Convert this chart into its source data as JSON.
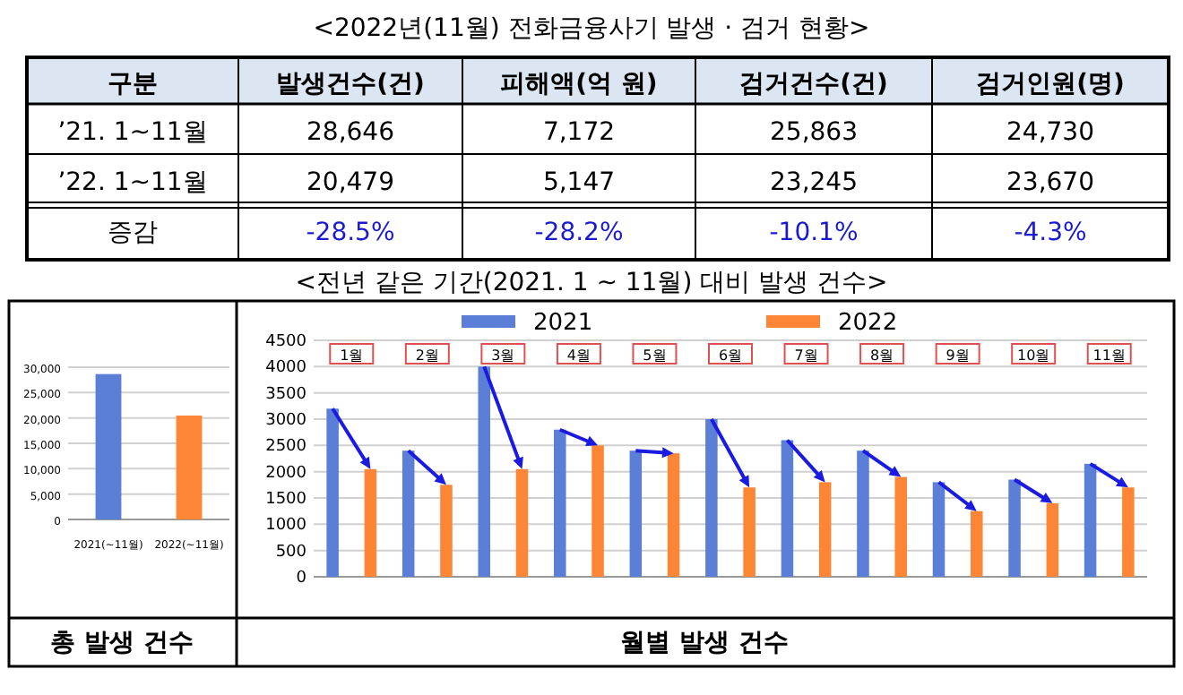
{
  "chart_data": [
    {
      "type": "other",
      "title": "<2022년(11월) 전화금융사기 발생 · 검거 현황>",
      "categories": [
        "구분",
        "발생건수(건)",
        "피해액(억 원)",
        "검거건수(건)",
        "검거인원(명)"
      ],
      "cell_labels": [
        [
          "’21. 1~11월",
          "28,646",
          "7,172",
          "25,863",
          "24,730"
        ],
        [
          "’22. 1~11월",
          "20,479",
          "5,147",
          "23,245",
          "23,670"
        ],
        [
          "증감",
          "-28.5%",
          "-28.2%",
          "-10.1%",
          "-4.3%"
        ]
      ]
    },
    {
      "type": "bar",
      "xlabel": "총 발생 건수",
      "categories": [
        "2021(~11월)",
        "2022(~11월)"
      ],
      "values": [
        28646,
        20479
      ],
      "colors": [
        "#5b7fd6",
        "#fd8636"
      ],
      "ylim": [
        0,
        30000
      ],
      "yticks": [
        {
          "value": 0,
          "label": "0"
        },
        {
          "value": 5000,
          "label": "5,000"
        },
        {
          "value": 10000,
          "label": "10,000"
        },
        {
          "value": 15000,
          "label": "15,000"
        },
        {
          "value": 20000,
          "label": "20,000"
        },
        {
          "value": 25000,
          "label": "25,000"
        },
        {
          "value": 30000,
          "label": "30,000"
        }
      ],
      "grid": "y",
      "legend": false
    },
    {
      "type": "bar",
      "title": "<전년 같은 기간(2021. 1 ~ 11월) 대비 발생 건수>",
      "xlabel": "월별 발생 건수",
      "categories": [
        "1월",
        "2월",
        "3월",
        "4월",
        "5월",
        "6월",
        "7월",
        "8월",
        "9월",
        "10월",
        "11월"
      ],
      "series": [
        {
          "name": "2021",
          "color": "#5b7fd6",
          "values": [
            3200,
            2400,
            4000,
            2800,
            2400,
            3000,
            2600,
            2400,
            1800,
            1850,
            2150
          ]
        },
        {
          "name": "2022",
          "color": "#fd8636",
          "values": [
            2050,
            1750,
            2050,
            2500,
            2350,
            1700,
            1800,
            1900,
            1250,
            1400,
            1700
          ]
        }
      ],
      "ylim": [
        0,
        4500
      ],
      "yticks": [
        0,
        500,
        1000,
        1500,
        2000,
        2500,
        3000,
        3500,
        4000,
        4500
      ],
      "grid": "y",
      "legend": "top"
    }
  ]
}
